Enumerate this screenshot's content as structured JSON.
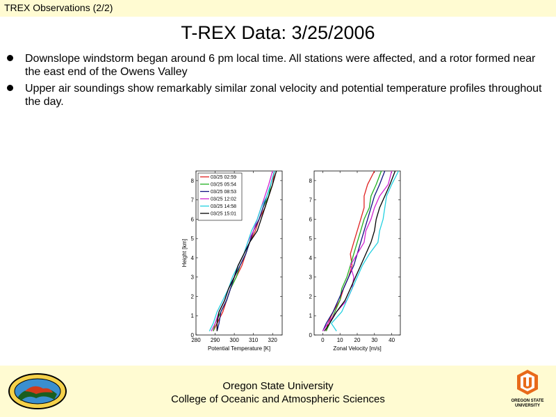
{
  "header": {
    "title": "TREX Observations (2/2)"
  },
  "slide": {
    "title": "T-REX Data:  3/25/2006",
    "bullets": [
      "Downslope windstorm began around 6 pm local time.  All stations were affected, and a rotor formed near the east end of the Owens Valley",
      "Upper air soundings show remarkably similar zonal velocity and potential temperature profiles throughout the day."
    ]
  },
  "footer": {
    "line1": "Oregon State University",
    "line2": "College of Oceanic and Atmospheric Sciences",
    "right_logo_text": [
      "OREGON STATE",
      "UNIVERSITY"
    ],
    "left_logo_icon": "expedition-patch-logo",
    "right_logo_icon": "osu-logo"
  },
  "chart_data": [
    {
      "type": "line",
      "xlabel": "Potential Temperature [K]",
      "ylabel": "Height [km]",
      "xlim": [
        280,
        325
      ],
      "ylim": [
        0,
        8.5
      ],
      "xticks": [
        280,
        290,
        300,
        310,
        320
      ],
      "yticks": [
        0,
        1,
        2,
        3,
        4,
        5,
        6,
        7,
        8
      ],
      "legend_position": "top-left",
      "series": [
        {
          "name": "03/25 02:59",
          "color": "#e02020",
          "x": [
            289,
            291,
            294,
            296,
            298,
            301,
            304,
            306,
            308,
            311,
            313,
            316,
            318,
            320,
            321
          ],
          "y": [
            0.2,
            0.6,
            1.2,
            1.8,
            2.4,
            3.0,
            3.6,
            4.2,
            4.8,
            5.4,
            6.0,
            6.6,
            7.2,
            7.8,
            8.5
          ]
        },
        {
          "name": "03/25 05:54",
          "color": "#20b020",
          "x": [
            289,
            290,
            293,
            296,
            298,
            301,
            303,
            306,
            308,
            310,
            313,
            315,
            318,
            319,
            321
          ],
          "y": [
            0.2,
            0.6,
            1.2,
            1.8,
            2.4,
            3.0,
            3.6,
            4.2,
            4.8,
            5.4,
            6.0,
            6.6,
            7.2,
            7.8,
            8.5
          ]
        },
        {
          "name": "03/25 08:53",
          "color": "#101080",
          "x": [
            291,
            292,
            293,
            296,
            298,
            300,
            303,
            306,
            308,
            310,
            313,
            315,
            317,
            319,
            321
          ],
          "y": [
            0.2,
            0.6,
            1.2,
            1.8,
            2.4,
            3.0,
            3.6,
            4.2,
            4.8,
            5.4,
            6.0,
            6.6,
            7.2,
            7.8,
            8.5
          ]
        },
        {
          "name": "03/25 12:02",
          "color": "#d020d0",
          "x": [
            288,
            290,
            292,
            295,
            297,
            300,
            302,
            305,
            307,
            310,
            312,
            314,
            316,
            318,
            320
          ],
          "y": [
            0.2,
            0.6,
            1.2,
            1.8,
            2.4,
            3.0,
            3.6,
            4.2,
            4.8,
            5.4,
            6.0,
            6.6,
            7.2,
            7.8,
            8.5
          ]
        },
        {
          "name": "03/25 14:58",
          "color": "#20d0e0",
          "x": [
            287,
            289,
            291,
            294,
            297,
            299,
            302,
            305,
            307,
            309,
            312,
            314,
            317,
            319,
            321
          ],
          "y": [
            0.2,
            0.6,
            1.2,
            1.8,
            2.4,
            3.0,
            3.6,
            4.2,
            4.8,
            5.4,
            6.0,
            6.6,
            7.2,
            7.8,
            8.5
          ]
        },
        {
          "name": "03/25 15:01",
          "color": "#000000",
          "x": [
            291,
            291,
            292,
            295,
            297,
            300,
            302,
            305,
            308,
            312,
            314,
            316,
            318,
            320,
            322
          ],
          "y": [
            0.2,
            0.6,
            1.2,
            1.8,
            2.4,
            3.0,
            3.6,
            4.2,
            4.8,
            5.4,
            6.0,
            6.6,
            7.2,
            7.8,
            8.5
          ]
        }
      ]
    },
    {
      "type": "line",
      "xlabel": "Zonal Velocity [m/s]",
      "ylabel": "",
      "xlim": [
        -5,
        45
      ],
      "ylim": [
        0,
        8.5
      ],
      "xticks": [
        0,
        10,
        20,
        30,
        40
      ],
      "yticks": [
        0,
        1,
        2,
        3,
        4,
        5,
        6,
        7,
        8
      ],
      "series": [
        {
          "name": "03/25 02:59",
          "color": "#e02020",
          "x": [
            2,
            3,
            6,
            10,
            12,
            15,
            17,
            16,
            18,
            20,
            22,
            24,
            24,
            26,
            30
          ],
          "y": [
            0.2,
            0.6,
            1.2,
            1.8,
            2.4,
            3.0,
            3.6,
            4.2,
            4.8,
            5.4,
            6.0,
            6.6,
            7.2,
            7.8,
            8.5
          ]
        },
        {
          "name": "03/25 05:54",
          "color": "#20b020",
          "x": [
            2,
            4,
            7,
            10,
            11,
            14,
            16,
            18,
            20,
            22,
            24,
            27,
            28,
            31,
            34
          ],
          "y": [
            0.2,
            0.6,
            1.2,
            1.8,
            2.4,
            3.0,
            3.6,
            4.2,
            4.8,
            5.4,
            6.0,
            6.6,
            7.2,
            7.8,
            8.5
          ]
        },
        {
          "name": "03/25 08:53",
          "color": "#101080",
          "x": [
            0,
            2,
            6,
            9,
            12,
            15,
            18,
            20,
            22,
            24,
            26,
            28,
            30,
            33,
            36
          ],
          "y": [
            0.2,
            0.6,
            1.2,
            1.8,
            2.4,
            3.0,
            3.6,
            4.2,
            4.8,
            5.4,
            6.0,
            6.6,
            7.2,
            7.8,
            8.5
          ]
        },
        {
          "name": "03/25 12:02",
          "color": "#d020d0",
          "x": [
            0,
            3,
            8,
            14,
            17,
            18,
            16,
            20,
            24,
            25,
            28,
            30,
            33,
            38,
            40
          ],
          "y": [
            0.2,
            0.6,
            1.2,
            1.8,
            2.4,
            3.0,
            3.6,
            4.2,
            4.8,
            5.4,
            6.0,
            6.6,
            7.2,
            7.8,
            8.5
          ]
        },
        {
          "name": "03/25 14:58",
          "color": "#20d0e0",
          "x": [
            8,
            5,
            11,
            14,
            17,
            20,
            23,
            27,
            32,
            33,
            35,
            36,
            37,
            40,
            44
          ],
          "y": [
            0.2,
            0.6,
            1.2,
            1.8,
            2.4,
            3.0,
            3.6,
            4.2,
            4.8,
            5.4,
            6.0,
            6.6,
            7.2,
            7.8,
            8.5
          ]
        },
        {
          "name": "03/25 15:01",
          "color": "#000000",
          "x": [
            1,
            4,
            8,
            13,
            16,
            19,
            22,
            25,
            28,
            30,
            31,
            33,
            36,
            39,
            42
          ],
          "y": [
            0.2,
            0.6,
            1.2,
            1.8,
            2.4,
            3.0,
            3.6,
            4.2,
            4.8,
            5.4,
            6.0,
            6.6,
            7.2,
            7.8,
            8.5
          ]
        }
      ]
    }
  ]
}
